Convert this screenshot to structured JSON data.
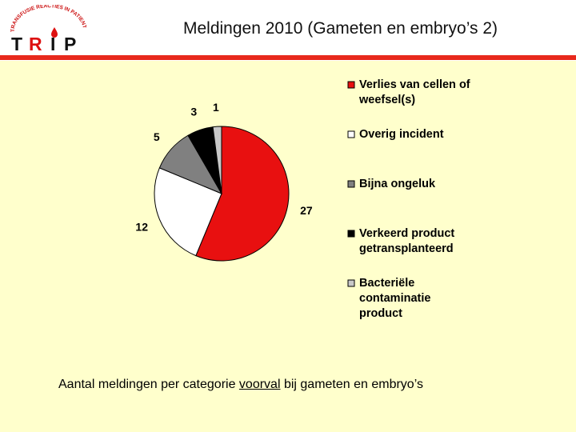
{
  "logo": {
    "ring_text": "TRANSFUSIE REACTIES IN PATIENTEN",
    "letters": [
      "T",
      "R",
      "I",
      "P"
    ]
  },
  "header": {
    "title": "Meldingen 2010 (Gameten en embryo’s 2)"
  },
  "caption": {
    "before": "Aantal meldingen per categorie ",
    "underlined": "voorval",
    "after": " bij gameten en embryo’s"
  },
  "chart_data": {
    "type": "pie",
    "title": "",
    "categories": [
      "Verlies van cellen of weefsel(s)",
      "Overig incident",
      "Bijna ongeluk",
      "Verkeerd product getransplanteerd",
      "Bacteriële contaminatie product"
    ],
    "values": [
      27,
      12,
      5,
      3,
      1
    ],
    "colors": [
      "#e81010",
      "#ffffff",
      "#808080",
      "#000000",
      "#c8c8c8"
    ],
    "legend_lines": [
      [
        "Verlies van cellen of",
        "weefsel(s)"
      ],
      [
        "Overig incident"
      ],
      [
        "Bijna ongeluk"
      ],
      [
        "Verkeerd product",
        "getransplanteerd"
      ],
      [
        "Bacteriële",
        "contaminatie",
        "product"
      ]
    ],
    "legend_position": "right",
    "start_angle": "12 o'clock, clockwise"
  }
}
